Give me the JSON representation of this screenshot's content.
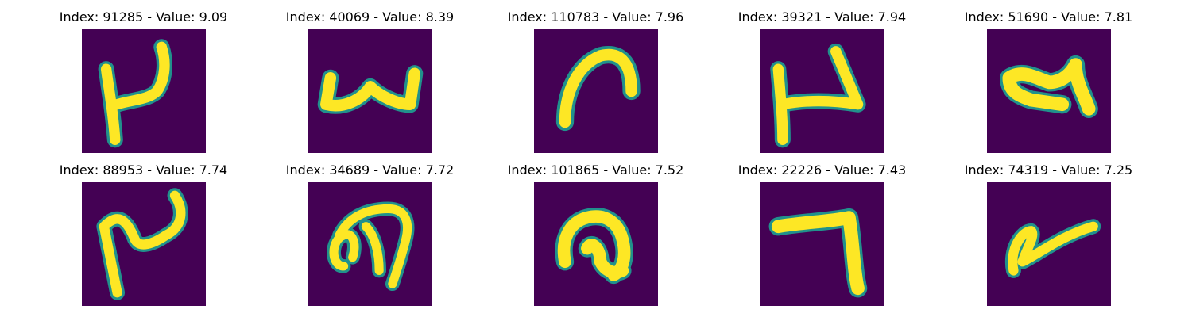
{
  "figure": {
    "colors": {
      "background": "#440154",
      "stroke_outer": "#21918c",
      "stroke_inner": "#fde725"
    },
    "panels": [
      {
        "title": "Index: 91285 - Value: 9.09",
        "icon": "digit-glyph"
      },
      {
        "title": "Index: 40069 - Value: 8.39",
        "icon": "digit-glyph"
      },
      {
        "title": "Index: 110783 - Value: 7.96",
        "icon": "digit-glyph"
      },
      {
        "title": "Index: 39321 - Value: 7.94",
        "icon": "digit-glyph"
      },
      {
        "title": "Index: 51690 - Value: 7.81",
        "icon": "digit-glyph"
      },
      {
        "title": "Index: 88953 - Value: 7.74",
        "icon": "digit-glyph"
      },
      {
        "title": "Index: 34689 - Value: 7.72",
        "icon": "digit-glyph"
      },
      {
        "title": "Index: 101865 - Value: 7.52",
        "icon": "digit-glyph"
      },
      {
        "title": "Index: 22226 - Value: 7.43",
        "icon": "digit-glyph"
      },
      {
        "title": "Index: 74319 - Value: 7.25",
        "icon": "digit-glyph"
      }
    ]
  }
}
